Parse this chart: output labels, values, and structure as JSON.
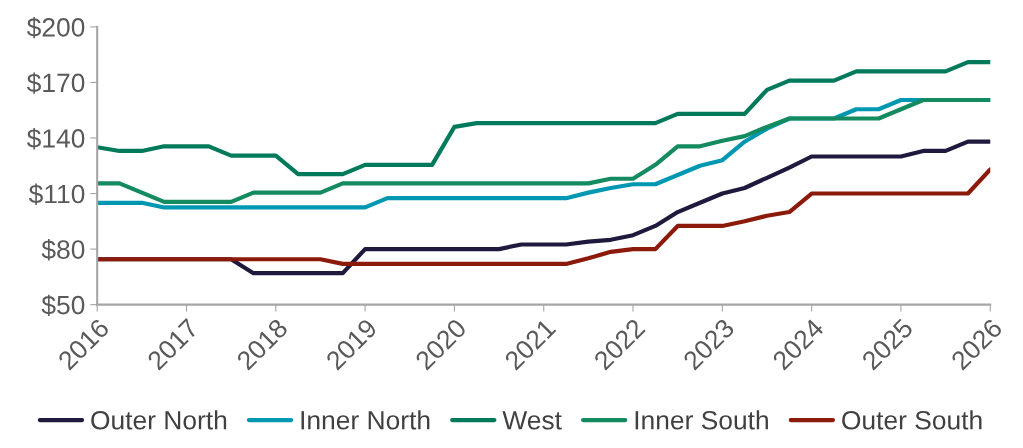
{
  "chart_data": {
    "type": "line",
    "x": [
      2016,
      2016.25,
      2016.5,
      2016.75,
      2017,
      2017.25,
      2017.5,
      2017.75,
      2018,
      2018.25,
      2018.5,
      2018.75,
      2019,
      2019.25,
      2019.5,
      2019.75,
      2020,
      2020.25,
      2020.5,
      2020.75,
      2021,
      2021.25,
      2021.5,
      2021.75,
      2022,
      2022.25,
      2022.5,
      2022.75,
      2023,
      2023.25,
      2023.5,
      2023.75,
      2024,
      2024.25,
      2024.5,
      2024.75,
      2025,
      2025.25,
      2025.5,
      2025.75,
      2026
    ],
    "series": [
      {
        "name": "Outer North",
        "color": "#1f1a3d",
        "values": [
          74.5,
          74.5,
          74.5,
          74.5,
          74.5,
          74.5,
          74.5,
          67,
          67,
          67,
          67,
          67,
          80,
          80,
          80,
          80,
          80,
          80,
          80,
          82.5,
          82.5,
          82.5,
          84,
          85,
          87.5,
          92.5,
          100,
          105,
          110,
          113,
          118.5,
          124,
          130,
          130,
          130,
          130,
          130,
          133,
          133,
          138,
          138
        ]
      },
      {
        "name": "Inner North",
        "color": "#0097b2",
        "values": [
          105,
          105,
          105,
          102.5,
          102.5,
          102.5,
          102.5,
          102.5,
          102.5,
          102.5,
          102.5,
          102.5,
          102.5,
          107.5,
          107.5,
          107.5,
          107.5,
          107.5,
          107.5,
          107.5,
          107.5,
          107.5,
          110.5,
          113,
          115,
          115,
          120,
          125,
          128,
          138,
          145,
          150.5,
          150.5,
          150.5,
          155.5,
          155.5,
          160.5,
          160.5,
          160.5,
          160.5,
          160.5
        ]
      },
      {
        "name": "West",
        "color": "#007a5a",
        "values": [
          135,
          133,
          133,
          135.5,
          135.5,
          135.5,
          130.5,
          130.5,
          130.5,
          120.5,
          120.5,
          120.5,
          125.5,
          125.5,
          125.5,
          125.5,
          146,
          148,
          148,
          148,
          148,
          148,
          148,
          148,
          148,
          148,
          153,
          153,
          153,
          153,
          166,
          171,
          171,
          171,
          176,
          176,
          176,
          176,
          176,
          181,
          181
        ]
      },
      {
        "name": "Inner South",
        "color": "#138a60",
        "values": [
          115.5,
          115.5,
          110.5,
          105.5,
          105.5,
          105.5,
          105.5,
          110.5,
          110.5,
          110.5,
          110.5,
          115.5,
          115.5,
          115.5,
          115.5,
          115.5,
          115.5,
          115.5,
          115.5,
          115.5,
          115.5,
          115.5,
          115.5,
          118,
          118,
          125.5,
          135.5,
          135.5,
          138.5,
          141,
          146,
          150.5,
          150.5,
          150.5,
          150.5,
          150.5,
          155.5,
          160.5,
          160.5,
          160.5,
          160.5
        ]
      },
      {
        "name": "Outer South",
        "color": "#8b1a0b",
        "values": [
          74.5,
          74.5,
          74.5,
          74.5,
          74.5,
          74.5,
          74.5,
          74.5,
          74.5,
          74.5,
          74.5,
          72,
          72,
          72,
          72,
          72,
          72,
          72,
          72,
          72,
          72,
          72,
          75,
          78.5,
          80,
          80,
          92.5,
          92.5,
          92.5,
          95,
          98,
          100,
          110,
          110,
          110,
          110,
          110,
          110,
          110,
          110,
          123
        ]
      }
    ],
    "xlim": [
      2016,
      2026
    ],
    "xticks": [
      2016,
      2017,
      2018,
      2019,
      2020,
      2021,
      2022,
      2023,
      2024,
      2025,
      2026
    ],
    "ylim": [
      50,
      200
    ],
    "yticks": [
      {
        "value": 50,
        "label": "$50"
      },
      {
        "value": 80,
        "label": "$80"
      },
      {
        "value": 110,
        "label": "$110"
      },
      {
        "value": 140,
        "label": "$140"
      },
      {
        "value": 170,
        "label": "$170"
      },
      {
        "value": 200,
        "label": "$200"
      }
    ],
    "grid": false,
    "legend": "bottom",
    "marker": "none",
    "line_style": "solid"
  }
}
